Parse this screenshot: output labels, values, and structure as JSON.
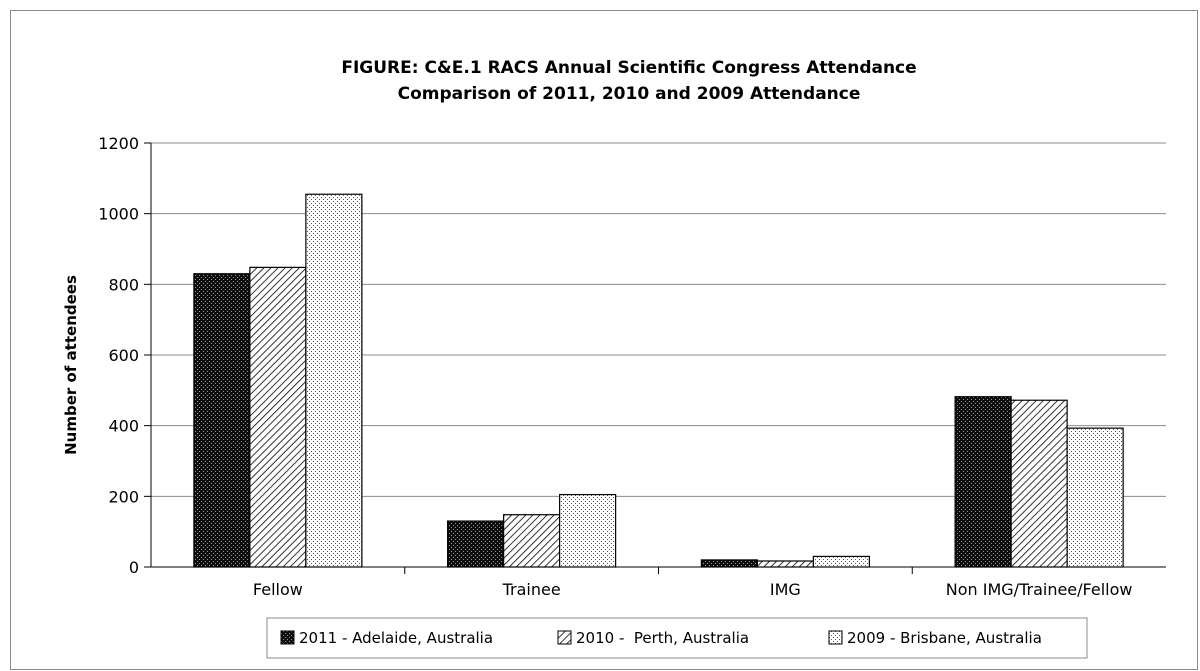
{
  "chart_data": {
    "type": "bar",
    "title": "FIGURE: C&E.1 RACS Annual Scientific Congress Attendance",
    "subtitle": "Comparison of 2011, 2010 and 2009 Attendance",
    "xlabel": "",
    "ylabel": "Number of attendees",
    "ylim": [
      0,
      1200
    ],
    "yticks": [
      "0",
      "200",
      "400",
      "600",
      "800",
      "1000",
      "1200"
    ],
    "categories": [
      "Fellow",
      "Trainee",
      "IMG",
      "Non IMG/Trainee/Fellow"
    ],
    "series": [
      {
        "name": "2011 - Adelaide, Australia",
        "values": [
          830,
          130,
          20,
          482
        ],
        "pattern": "dark-dots"
      },
      {
        "name": "2010 -  Perth, Australia",
        "values": [
          848,
          148,
          17,
          472
        ],
        "pattern": "diagonal-hatch"
      },
      {
        "name": "2009 - Brisbane, Australia",
        "values": [
          1055,
          205,
          30,
          393
        ],
        "pattern": "light-dots"
      }
    ],
    "grid": true,
    "legend_position": "bottom",
    "colors": {
      "grid": "#8c8c8c",
      "bar_outline": "#000000",
      "dark_fill": "#1a1a1a"
    }
  }
}
